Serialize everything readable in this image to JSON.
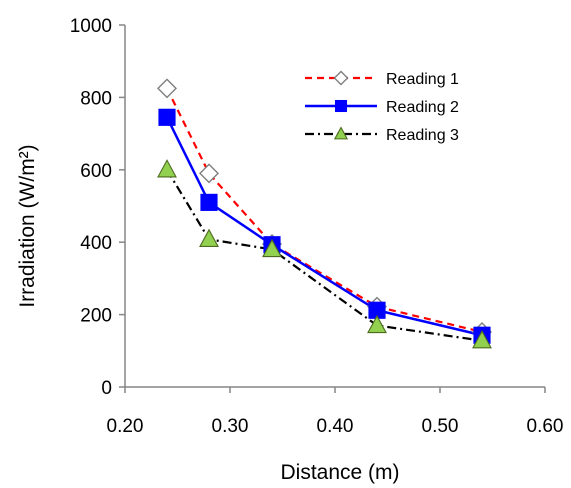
{
  "chart_data": {
    "type": "line",
    "xlabel": "Distance (m)",
    "ylabel": "Irradiation (W/m²)",
    "xlim": [
      0.2,
      0.6
    ],
    "ylim": [
      0,
      1000
    ],
    "xticks": [
      "0.20",
      "0.30",
      "0.40",
      "0.50",
      "0.60"
    ],
    "yticks": [
      "0",
      "200",
      "400",
      "600",
      "800",
      "1000"
    ],
    "legend_position": "top-right",
    "grid": false,
    "x": [
      0.24,
      0.28,
      0.34,
      0.44,
      0.54
    ],
    "series": [
      {
        "name": "Reading 1",
        "values": [
          825,
          590,
          395,
          222,
          152
        ],
        "color": "#ff0000",
        "line_style": "dashed",
        "marker": "diamond-open"
      },
      {
        "name": "Reading 2",
        "values": [
          745,
          510,
          393,
          212,
          143
        ],
        "color": "#0000ff",
        "line_style": "solid",
        "marker": "square-filled"
      },
      {
        "name": "Reading 3",
        "values": [
          600,
          408,
          380,
          170,
          128
        ],
        "color": "#000000",
        "marker_color": "#92d050",
        "line_style": "dash-dot",
        "marker": "triangle-filled"
      }
    ]
  }
}
